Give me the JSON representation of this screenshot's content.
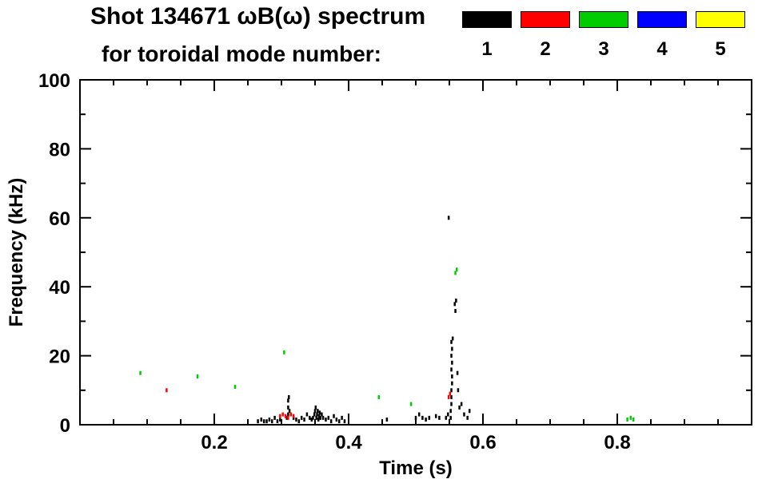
{
  "header": {
    "title_line1": "Shot 134671 ωB(ω) spectrum",
    "title_line2": "for toroidal mode number:"
  },
  "legend": {
    "entries": [
      {
        "label": "1",
        "color": "#000000"
      },
      {
        "label": "2",
        "color": "#ff0000"
      },
      {
        "label": "3",
        "color": "#00cc00"
      },
      {
        "label": "4",
        "color": "#0000ff"
      },
      {
        "label": "5",
        "color": "#ffff00"
      }
    ]
  },
  "chart_data": {
    "type": "scatter",
    "title": "Shot 134671 ωB(ω) spectrum for toroidal mode number: 1 2 3 4 5",
    "xlabel": "Time (s)",
    "ylabel": "Frequency (kHz)",
    "xlim": [
      0.0,
      1.0
    ],
    "ylim": [
      0,
      100
    ],
    "grid": false,
    "legend_position": "top-right",
    "x_major_ticks": [
      {
        "v": 0.2,
        "label": "0.2"
      },
      {
        "v": 0.4,
        "label": "0.4"
      },
      {
        "v": 0.6,
        "label": "0.6"
      },
      {
        "v": 0.8,
        "label": "0.8"
      }
    ],
    "x_minor_step": 0.05,
    "y_major_ticks": [
      {
        "v": 0,
        "label": "0"
      },
      {
        "v": 20,
        "label": "20"
      },
      {
        "v": 40,
        "label": "40"
      },
      {
        "v": 60,
        "label": "60"
      },
      {
        "v": 80,
        "label": "80"
      },
      {
        "v": 100,
        "label": "100"
      }
    ],
    "y_minor_step": 10,
    "series": [
      {
        "name": "n=1",
        "color": "#000000",
        "points": [
          [
            0.265,
            1
          ],
          [
            0.27,
            1.5
          ],
          [
            0.274,
            1
          ],
          [
            0.278,
            1
          ],
          [
            0.282,
            1.5
          ],
          [
            0.286,
            1
          ],
          [
            0.29,
            2
          ],
          [
            0.294,
            1
          ],
          [
            0.298,
            1.5
          ],
          [
            0.308,
            2
          ],
          [
            0.31,
            3
          ],
          [
            0.31,
            5
          ],
          [
            0.31,
            7
          ],
          [
            0.311,
            8
          ],
          [
            0.312,
            4
          ],
          [
            0.318,
            2
          ],
          [
            0.322,
            1.5
          ],
          [
            0.326,
            1
          ],
          [
            0.33,
            2
          ],
          [
            0.334,
            1.5
          ],
          [
            0.338,
            3
          ],
          [
            0.342,
            2
          ],
          [
            0.345,
            1.5
          ],
          [
            0.347,
            2
          ],
          [
            0.349,
            3
          ],
          [
            0.35,
            4
          ],
          [
            0.351,
            5
          ],
          [
            0.352,
            2
          ],
          [
            0.353,
            3
          ],
          [
            0.354,
            4
          ],
          [
            0.355,
            1.5
          ],
          [
            0.356,
            2.5
          ],
          [
            0.357,
            3.5
          ],
          [
            0.358,
            2
          ],
          [
            0.36,
            3
          ],
          [
            0.362,
            2
          ],
          [
            0.366,
            1.5
          ],
          [
            0.37,
            2
          ],
          [
            0.374,
            1
          ],
          [
            0.378,
            2.5
          ],
          [
            0.382,
            1.5
          ],
          [
            0.386,
            1
          ],
          [
            0.39,
            2
          ],
          [
            0.394,
            1
          ],
          [
            0.457,
            1.5
          ],
          [
            0.5,
            2
          ],
          [
            0.505,
            3
          ],
          [
            0.51,
            2
          ],
          [
            0.515,
            1.5
          ],
          [
            0.52,
            2
          ],
          [
            0.53,
            2.5
          ],
          [
            0.535,
            2
          ],
          [
            0.545,
            2
          ],
          [
            0.548,
            3
          ],
          [
            0.552,
            2
          ],
          [
            0.552,
            4
          ],
          [
            0.553,
            6
          ],
          [
            0.553,
            8
          ],
          [
            0.553,
            10
          ],
          [
            0.554,
            12
          ],
          [
            0.554,
            14
          ],
          [
            0.553,
            16
          ],
          [
            0.554,
            18
          ],
          [
            0.553,
            20
          ],
          [
            0.554,
            22
          ],
          [
            0.553,
            24
          ],
          [
            0.555,
            25
          ],
          [
            0.549,
            60
          ],
          [
            0.558,
            35
          ],
          [
            0.559,
            33
          ],
          [
            0.56,
            36
          ],
          [
            0.562,
            15
          ],
          [
            0.563,
            10
          ],
          [
            0.565,
            5
          ],
          [
            0.568,
            6
          ],
          [
            0.572,
            3
          ],
          [
            0.577,
            2
          ],
          [
            0.58,
            4
          ]
        ]
      },
      {
        "name": "n=2",
        "color": "#ff0000",
        "points": [
          [
            0.129,
            10
          ],
          [
            0.298,
            2.5
          ],
          [
            0.302,
            3
          ],
          [
            0.306,
            2.5
          ],
          [
            0.31,
            2
          ],
          [
            0.314,
            3
          ],
          [
            0.318,
            2.5
          ],
          [
            0.549,
            8
          ],
          [
            0.551,
            9
          ]
        ]
      },
      {
        "name": "n=3",
        "color": "#00cc00",
        "points": [
          [
            0.09,
            15
          ],
          [
            0.175,
            14
          ],
          [
            0.231,
            11
          ],
          [
            0.304,
            21
          ],
          [
            0.445,
            8
          ],
          [
            0.493,
            6
          ],
          [
            0.559,
            44
          ],
          [
            0.561,
            45
          ],
          [
            0.815,
            1.5
          ],
          [
            0.82,
            2
          ],
          [
            0.824,
            1.5
          ]
        ]
      },
      {
        "name": "n=4",
        "color": "#0000ff",
        "points": []
      },
      {
        "name": "n=5",
        "color": "#ffff00",
        "points": []
      }
    ]
  }
}
